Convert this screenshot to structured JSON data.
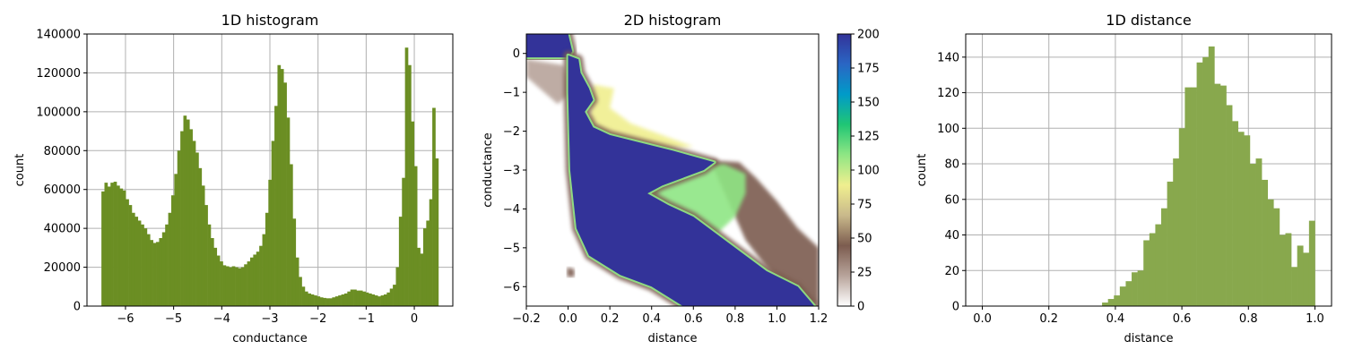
{
  "colors": {
    "bar_1d": "#6b8e23",
    "bar_dist": "#88a84d",
    "grid": "#b0b0b0",
    "colormap": [
      "#ffffff",
      "#b8a49b",
      "#7c5c4f",
      "#c9b98b",
      "#f0ef8f",
      "#8fe684",
      "#20c674",
      "#009bc8",
      "#2a66c4",
      "#333399"
    ]
  },
  "chart_data": [
    {
      "type": "bar",
      "title": "1D histogram",
      "xlabel": "conductance",
      "ylabel": "count",
      "xlim": [
        -6.8,
        0.8
      ],
      "ylim": [
        0,
        140000
      ],
      "xticks": [
        -6,
        -5,
        -4,
        -3,
        -2,
        -1,
        0
      ],
      "yticks": [
        0,
        20000,
        40000,
        60000,
        80000,
        100000,
        120000,
        140000
      ],
      "grid": true,
      "bin_range": [
        -6.5,
        0.5
      ],
      "values": [
        59000,
        63500,
        61500,
        63500,
        64000,
        62000,
        60500,
        59500,
        55000,
        52000,
        48000,
        46000,
        44000,
        42000,
        40000,
        37000,
        34000,
        32500,
        33000,
        35000,
        38000,
        42000,
        48000,
        57000,
        68000,
        80000,
        90000,
        98000,
        96000,
        91000,
        85000,
        79000,
        71000,
        62000,
        52000,
        42000,
        35000,
        30000,
        26000,
        23000,
        21000,
        20500,
        20000,
        20500,
        20000,
        19500,
        20000,
        21500,
        23000,
        25000,
        26500,
        28000,
        31000,
        37000,
        48000,
        65000,
        85000,
        103000,
        124000,
        122000,
        115000,
        97000,
        73000,
        45000,
        25000,
        15000,
        10000,
        7500,
        6500,
        6000,
        5500,
        5000,
        4500,
        4200,
        4000,
        4000,
        4500,
        5000,
        5500,
        6000,
        6500,
        7500,
        8500,
        8500,
        8000,
        8000,
        7500,
        7000,
        6500,
        6000,
        5500,
        5000,
        5500,
        6000,
        7000,
        9000,
        11000,
        20000,
        46000,
        66000,
        133000,
        124000,
        95000,
        72000,
        30000,
        27000,
        40000,
        44000,
        55000,
        102000,
        76000
      ],
      "series_name": ""
    },
    {
      "type": "heatmap",
      "title": "2D histogram",
      "xlabel": "distance",
      "ylabel": "conductance",
      "xlim": [
        -0.2,
        1.2
      ],
      "ylim": [
        -6.5,
        0.5
      ],
      "xticks": [
        -0.2,
        0.0,
        0.2,
        0.4,
        0.6,
        0.8,
        1.0,
        1.2
      ],
      "yticks": [
        0,
        -1,
        -2,
        -3,
        -4,
        -5,
        -6
      ],
      "colorbar": {
        "range": [
          0,
          200
        ],
        "ticks": [
          0,
          25,
          50,
          75,
          100,
          125,
          150,
          175,
          200
        ]
      },
      "grid": false,
      "regions": [
        {
          "role": "saturated_top_left_plateau",
          "level": 200,
          "polygon": [
            [
              -0.2,
              0.5
            ],
            [
              0.0,
              0.5
            ],
            [
              0.02,
              0.05
            ],
            [
              0.0,
              -0.1
            ],
            [
              -0.2,
              -0.1
            ]
          ]
        },
        {
          "role": "main_band",
          "level": 200,
          "polygon": [
            [
              0.0,
              -0.05
            ],
            [
              0.05,
              -0.15
            ],
            [
              0.06,
              -0.5
            ],
            [
              0.1,
              -0.9
            ],
            [
              0.12,
              -1.2
            ],
            [
              0.08,
              -1.5
            ],
            [
              0.12,
              -1.9
            ],
            [
              0.2,
              -2.1
            ],
            [
              0.35,
              -2.3
            ],
            [
              0.5,
              -2.5
            ],
            [
              0.7,
              -2.8
            ],
            [
              0.65,
              -3.0
            ],
            [
              0.55,
              -3.2
            ],
            [
              0.45,
              -3.4
            ],
            [
              0.38,
              -3.6
            ],
            [
              0.48,
              -3.9
            ],
            [
              0.6,
              -4.2
            ],
            [
              0.7,
              -4.6
            ],
            [
              0.8,
              -5.0
            ],
            [
              0.95,
              -5.6
            ],
            [
              1.1,
              -6.0
            ],
            [
              1.18,
              -6.5
            ],
            [
              0.55,
              -6.5
            ],
            [
              0.4,
              -6.0
            ],
            [
              0.25,
              -5.7
            ],
            [
              0.1,
              -5.2
            ],
            [
              0.04,
              -4.5
            ],
            [
              0.01,
              -3.0
            ],
            [
              0.0,
              -1.0
            ]
          ]
        },
        {
          "role": "upper_shoulder",
          "level": 90,
          "polygon": [
            [
              0.12,
              -0.8
            ],
            [
              0.22,
              -0.9
            ],
            [
              0.2,
              -1.4
            ],
            [
              0.3,
              -1.8
            ],
            [
              0.5,
              -2.2
            ],
            [
              0.6,
              -2.4
            ],
            [
              0.45,
              -2.45
            ],
            [
              0.3,
              -2.3
            ],
            [
              0.15,
              -2.1
            ],
            [
              0.1,
              -1.7
            ]
          ]
        },
        {
          "role": "middle_shoulder",
          "level": 110,
          "polygon": [
            [
              0.28,
              -3.4
            ],
            [
              0.45,
              -3.1
            ],
            [
              0.6,
              -2.9
            ],
            [
              0.75,
              -2.85
            ],
            [
              0.85,
              -3.1
            ],
            [
              0.85,
              -3.6
            ],
            [
              0.8,
              -4.2
            ],
            [
              0.7,
              -4.7
            ],
            [
              0.6,
              -4.4
            ],
            [
              0.5,
              -4.1
            ],
            [
              0.35,
              -3.9
            ],
            [
              0.28,
              -3.7
            ]
          ]
        },
        {
          "role": "outer_tail",
          "level": 35,
          "polygon": [
            [
              0.68,
              -2.75
            ],
            [
              0.82,
              -2.8
            ],
            [
              0.9,
              -3.2
            ],
            [
              1.0,
              -3.8
            ],
            [
              1.1,
              -4.5
            ],
            [
              1.2,
              -5.0
            ],
            [
              1.2,
              -6.5
            ],
            [
              1.1,
              -6.3
            ],
            [
              0.95,
              -5.5
            ],
            [
              0.85,
              -4.8
            ]
          ]
        },
        {
          "role": "left_faint_tail",
          "level": 15,
          "polygon": [
            [
              -0.2,
              -0.15
            ],
            [
              -0.02,
              -0.3
            ],
            [
              0.02,
              -1.0
            ],
            [
              -0.05,
              -1.3
            ],
            [
              -0.2,
              -0.6
            ]
          ]
        },
        {
          "role": "small_blob",
          "level": 40,
          "polygon": [
            [
              -0.005,
              -5.5
            ],
            [
              0.03,
              -5.55
            ],
            [
              0.03,
              -5.75
            ],
            [
              -0.005,
              -5.75
            ]
          ]
        }
      ]
    },
    {
      "type": "bar",
      "title": "1D distance",
      "xlabel": "distance",
      "ylabel": "count",
      "xlim": [
        -0.05,
        1.05
      ],
      "ylim": [
        0,
        153
      ],
      "xticks": [
        0.0,
        0.2,
        0.4,
        0.6,
        0.8,
        1.0
      ],
      "yticks": [
        0,
        20,
        40,
        60,
        80,
        100,
        120,
        140
      ],
      "grid": true,
      "bin_range": [
        0.36,
        1.0
      ],
      "values": [
        2,
        4,
        6,
        11,
        14,
        19,
        20,
        37,
        41,
        46,
        55,
        70,
        83,
        100,
        123,
        123,
        137,
        140,
        146,
        125,
        124,
        113,
        104,
        98,
        96,
        80,
        83,
        71,
        60,
        55,
        40,
        41,
        22,
        34,
        30,
        48
      ],
      "series_name": ""
    }
  ]
}
